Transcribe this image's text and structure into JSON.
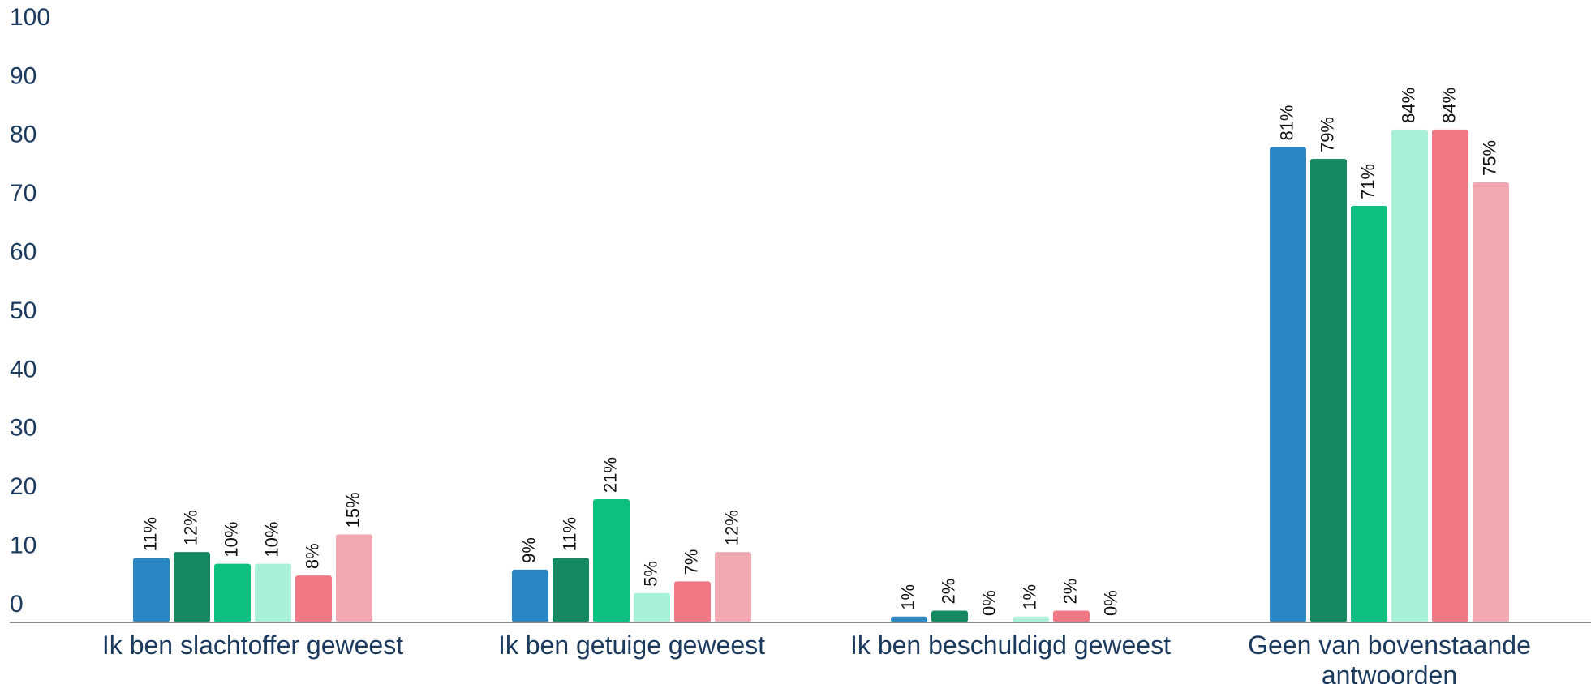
{
  "chart_data": {
    "type": "bar",
    "categories": [
      "Ik ben slachtoffer geweest",
      "Ik ben getuige geweest",
      "Ik ben beschuldigd geweest",
      "Geen van bovenstaande antwoorden"
    ],
    "series": [
      {
        "color": "#2a87c4",
        "values": [
          11,
          9,
          1,
          81
        ],
        "value_labels": [
          "11%",
          "9%",
          "1%",
          "81%"
        ]
      },
      {
        "color": "#138a5f",
        "values": [
          12,
          11,
          2,
          79
        ],
        "value_labels": [
          "12%",
          "11%",
          "2%",
          "79%"
        ]
      },
      {
        "color": "#0dc07f",
        "values": [
          10,
          21,
          0,
          71
        ],
        "value_labels": [
          "10%",
          "21%",
          "0%",
          "71%"
        ]
      },
      {
        "color": "#a8f0d6",
        "values": [
          10,
          5,
          1,
          84
        ],
        "value_labels": [
          "10%",
          "5%",
          "1%",
          "84%"
        ]
      },
      {
        "color": "#f07885",
        "values": [
          8,
          7,
          2,
          84
        ],
        "value_labels": [
          "8%",
          "7%",
          "2%",
          "84%"
        ]
      },
      {
        "color": "#f2a8b0",
        "values": [
          15,
          12,
          0,
          75
        ],
        "value_labels": [
          "15%",
          "12%",
          "0%",
          "75%"
        ]
      }
    ],
    "ylim": [
      0,
      100
    ],
    "yticks": [
      0,
      10,
      20,
      30,
      40,
      50,
      60,
      70,
      80,
      90,
      100
    ],
    "grid": false
  }
}
